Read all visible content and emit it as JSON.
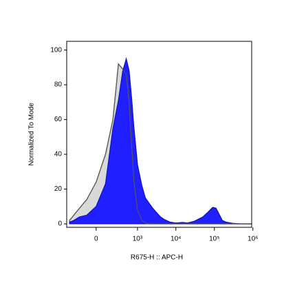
{
  "chart_data": {
    "type": "area",
    "x_label": "R675-H :: APC-H",
    "y_label": "Normalized To Mode",
    "x_scale": "asinh",
    "asinh_width": 170,
    "x": [
      -400,
      -300,
      -200,
      -100,
      0,
      100,
      200,
      300,
      400,
      500,
      600,
      700,
      800,
      1000,
      1300,
      1600,
      2000,
      2500,
      3000,
      4000,
      5000,
      7000,
      10000,
      15000,
      20000,
      30000,
      50000,
      70000,
      90000,
      110000,
      130000,
      160000,
      200000,
      300000,
      500000,
      900000
    ],
    "series": [
      {
        "color": "#d9d9d9",
        "stroke": "#555555",
        "values": [
          2,
          5,
          9,
          14,
          24,
          40,
          60,
          92,
          89,
          86,
          70,
          45,
          25,
          8,
          2,
          0.5,
          0,
          0,
          0,
          0,
          0,
          0,
          0,
          0,
          0,
          0,
          0,
          0,
          0,
          0,
          0,
          0,
          0,
          0,
          0,
          0
        ]
      },
      {
        "color": "#1f1fff",
        "stroke": "#1010c0",
        "values": [
          1,
          2,
          4,
          5,
          10,
          23,
          55,
          71,
          88,
          95,
          88,
          72,
          56,
          34,
          22,
          15,
          12,
          9,
          7,
          4,
          2.5,
          1,
          0.5,
          0.8,
          0.5,
          1.5,
          4,
          7,
          9.5,
          9,
          6,
          2,
          1,
          0.3,
          0,
          0
        ]
      }
    ],
    "xlim": [
      -480,
      930000
    ],
    "xticks": [
      0,
      {
        "value": 1000,
        "label": "10³"
      },
      {
        "value": 10000,
        "label": "10⁴"
      },
      {
        "value": 100000,
        "label": "10⁵"
      },
      {
        "value": 1000000,
        "label": "10⁶"
      }
    ],
    "ylim": [
      -2,
      105
    ],
    "yticks": [
      0,
      20,
      40,
      60,
      80,
      100
    ]
  }
}
